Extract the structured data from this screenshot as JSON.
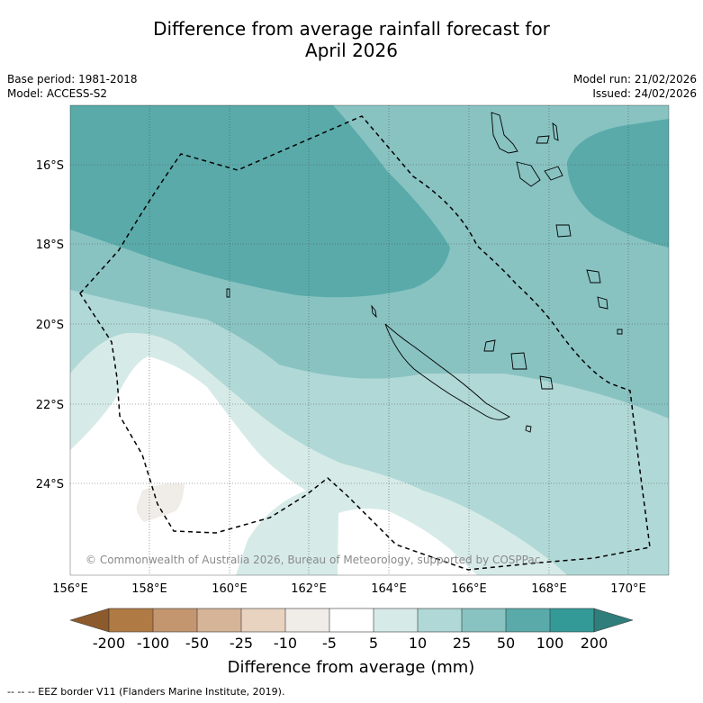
{
  "title": {
    "line1": "Difference from average rainfall forecast for",
    "line2": "April 2026"
  },
  "meta": {
    "base_period": "Base period: 1981-2018",
    "model": "Model: ACCESS-S2",
    "model_run": "Model run: 21/02/2026",
    "issued": "Issued: 24/02/2026"
  },
  "map": {
    "lat_labels": [
      "16°S",
      "18°S",
      "20°S",
      "22°S",
      "24°S"
    ],
    "lon_labels": [
      "156°E",
      "158°E",
      "160°E",
      "162°E",
      "164°E",
      "166°E",
      "168°E",
      "170°E"
    ],
    "credit": "© Commonwealth of Australia 2026, Bureau of Meteorology, supported by COSPPac"
  },
  "colorbar": {
    "title": "Difference from average (mm)",
    "ticks": [
      "-200",
      "-100",
      "-50",
      "-25",
      "-10",
      "-5",
      "5",
      "10",
      "25",
      "50",
      "100",
      "200"
    ],
    "colors": [
      "#8c5a2b",
      "#b07a44",
      "#c49670",
      "#d5b497",
      "#e8d3c1",
      "#f0ece8",
      "#ffffff",
      "#d6ebe8",
      "#b0d8d6",
      "#88c3c2",
      "#5aaaaa",
      "#349a98",
      "#2f7e7c"
    ]
  },
  "footnote": "--  --  -- EEZ border V11 (Flanders Marine Institute, 2019)."
}
